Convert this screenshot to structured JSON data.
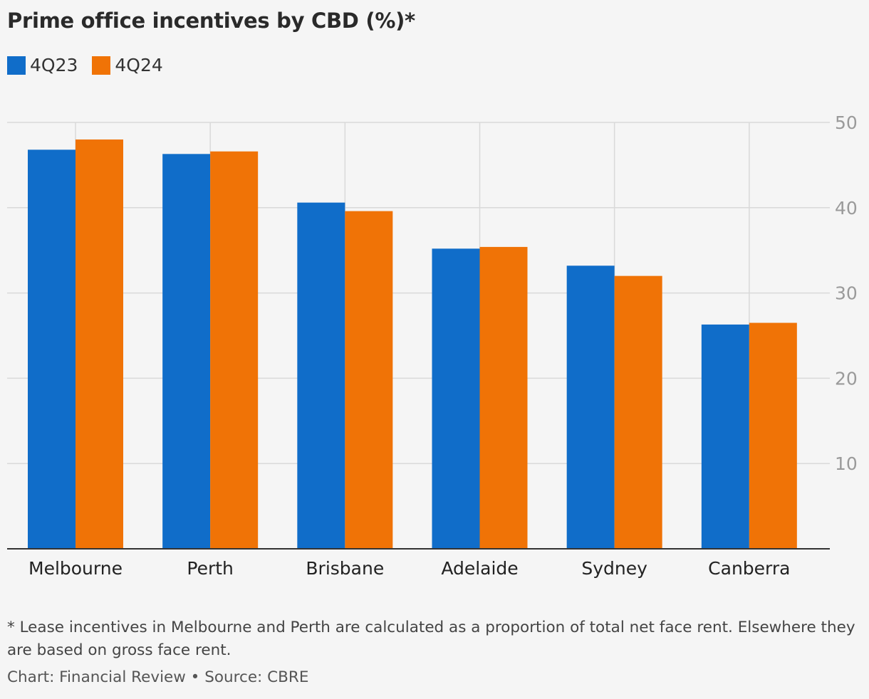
{
  "chart_data": {
    "type": "bar",
    "title": "Prime office incentives by CBD (%)*",
    "categories": [
      "Melbourne",
      "Perth",
      "Brisbane",
      "Adelaide",
      "Sydney",
      "Canberra"
    ],
    "series": [
      {
        "name": "4Q23",
        "color": "#106dc9",
        "values": [
          46.8,
          46.3,
          40.6,
          35.2,
          33.2,
          26.3
        ]
      },
      {
        "name": "4Q24",
        "color": "#f07306",
        "values": [
          48.0,
          46.6,
          39.6,
          35.4,
          32.0,
          26.5
        ]
      }
    ],
    "ylim": [
      0,
      50
    ],
    "yticks": [
      "10",
      "20",
      "30",
      "40",
      "50"
    ],
    "ytick_values": [
      10,
      20,
      30,
      40,
      50
    ],
    "axis_side": "right",
    "grid": true,
    "legend": "top-left"
  },
  "footnote": "* Lease incentives in Melbourne and Perth are calculated as a proportion of total net face rent. Elsewhere they are based on gross face rent.",
  "credit": "Chart: Financial Review • Source: CBRE"
}
